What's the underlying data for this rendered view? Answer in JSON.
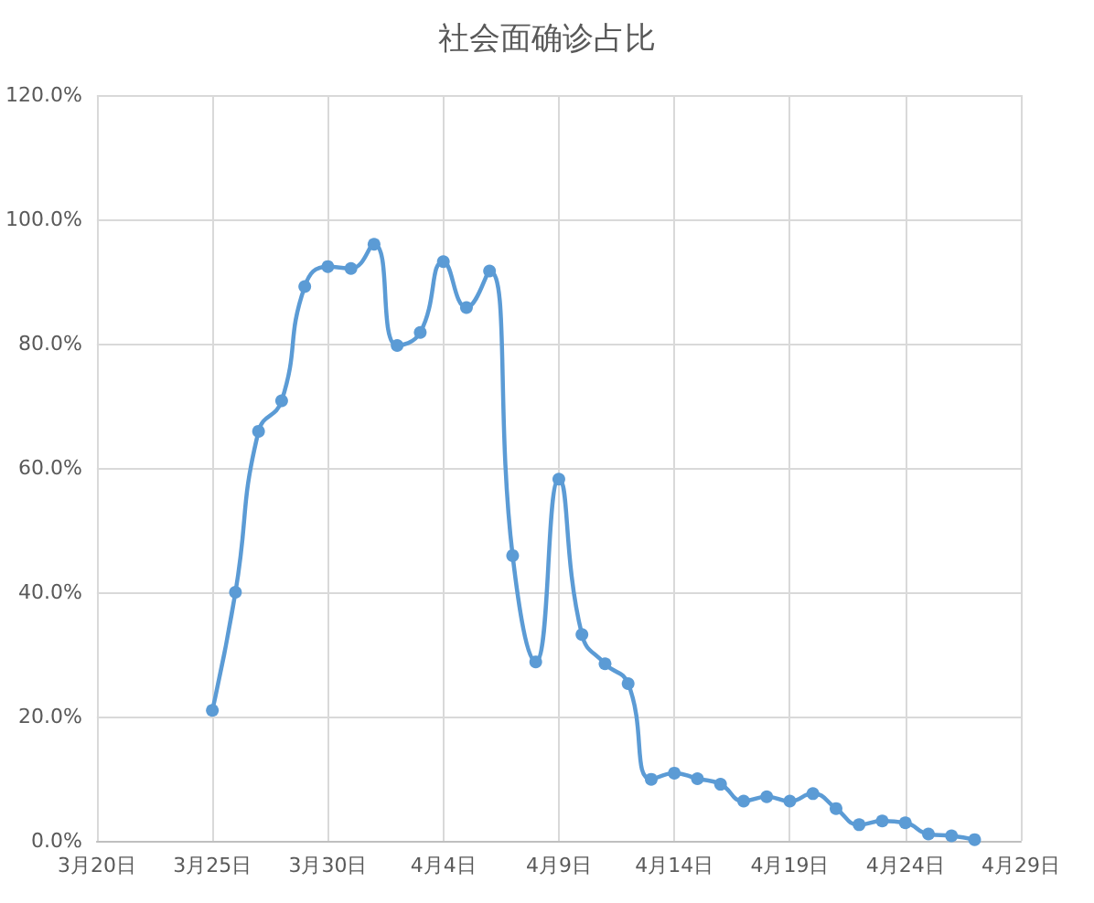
{
  "chart_data": {
    "type": "line",
    "title": "社会面确诊占比",
    "x": [
      "--03-25",
      "--03-26",
      "--03-27",
      "--03-28",
      "--03-29",
      "--03-30",
      "--03-31",
      "--04-01",
      "--04-02",
      "--04-03",
      "--04-04",
      "--04-05",
      "--04-06",
      "--04-07",
      "--04-08",
      "--04-09",
      "--04-10",
      "--04-11",
      "--04-12",
      "--04-13",
      "--04-14",
      "--04-15",
      "--04-16",
      "--04-17",
      "--04-18",
      "--04-19",
      "--04-20",
      "--04-21",
      "--04-22",
      "--04-23",
      "--04-24",
      "--04-25",
      "--04-26",
      "--04-27"
    ],
    "series": [
      {
        "color": "#5b9bd5",
        "values": [
          21.0,
          40.0,
          65.9,
          70.8,
          89.2,
          92.4,
          92.1,
          96.0,
          79.7,
          81.8,
          93.2,
          85.8,
          91.7,
          45.9,
          28.8,
          58.2,
          33.2,
          28.5,
          25.3,
          9.9,
          10.9,
          10.0,
          9.1,
          6.4,
          7.1,
          6.4,
          7.6,
          5.2,
          2.6,
          3.2,
          2.9,
          1.1,
          0.8,
          0.2
        ]
      }
    ],
    "xlim": [
      "--03-20",
      "--04-29"
    ],
    "xticks": [
      {
        "value": "--03-20",
        "label": "3月20日"
      },
      {
        "value": "--03-25",
        "label": "3月25日"
      },
      {
        "value": "--03-30",
        "label": "3月30日"
      },
      {
        "value": "--04-04",
        "label": "4月4日"
      },
      {
        "value": "--04-09",
        "label": "4月9日"
      },
      {
        "value": "--04-14",
        "label": "4月14日"
      },
      {
        "value": "--04-19",
        "label": "4月19日"
      },
      {
        "value": "--04-24",
        "label": "4月24日"
      },
      {
        "value": "--04-29",
        "label": "4月29日"
      }
    ],
    "ylim": [
      0,
      120
    ],
    "yticks": [
      {
        "value": 0,
        "label": "0.0%"
      },
      {
        "value": 20,
        "label": "20.0%"
      },
      {
        "value": 40,
        "label": "40.0%"
      },
      {
        "value": 60,
        "label": "60.0%"
      },
      {
        "value": 80,
        "label": "80.0%"
      },
      {
        "value": 100,
        "label": "100.0%"
      },
      {
        "value": 120,
        "label": "120.0%"
      }
    ],
    "grid": true,
    "marker": "circle",
    "line_style": "solid"
  }
}
